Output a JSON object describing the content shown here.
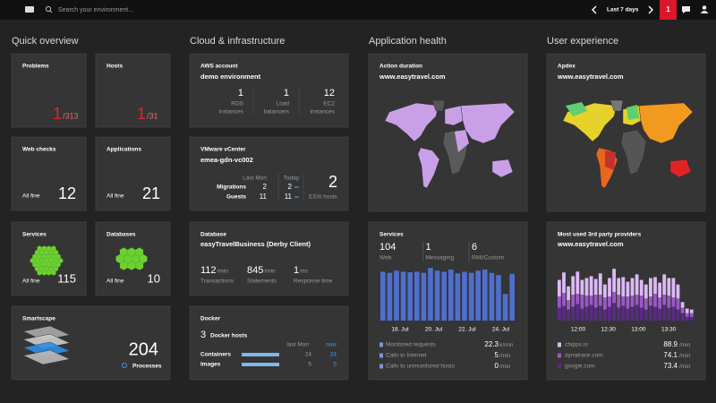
{
  "topbar": {
    "search": "Search your environment...",
    "timeframe": "Last 7 days",
    "alerts": "1"
  },
  "sections": [
    "Quick overview",
    "Cloud & infrastructure",
    "Application health",
    "User experience"
  ],
  "quick": {
    "problems": {
      "title": "Problems",
      "count": "1",
      "total": "/313"
    },
    "hosts": {
      "title": "Hosts",
      "count": "1",
      "total": "/31"
    },
    "webchecks": {
      "title": "Web checks",
      "status": "All fine",
      "count": 12
    },
    "applications": {
      "title": "Applications",
      "status": "All fine",
      "count": 21
    },
    "services": {
      "title": "Services",
      "status": "All fine",
      "count": 115
    },
    "databases": {
      "title": "Databases",
      "status": "All fine",
      "count": 10
    },
    "smartscape": {
      "title": "Smartscape",
      "count": 204,
      "label": "Processes"
    }
  },
  "cloud": {
    "aws": {
      "title": "AWS account",
      "name": "demo environment",
      "metrics": [
        {
          "value": 1,
          "label": [
            "RDS",
            "instances"
          ]
        },
        {
          "value": 1,
          "label": [
            "Load",
            "balancers"
          ]
        },
        {
          "value": 12,
          "label": [
            "EC2",
            "instances"
          ]
        }
      ]
    },
    "vmware": {
      "title": "VMware vCenter",
      "name": "emea-gdn-vc002",
      "columns": [
        "Last Mon",
        "Today"
      ],
      "rows": [
        {
          "label": "Migrations",
          "values": [
            2,
            2
          ]
        },
        {
          "label": "Guests",
          "values": [
            11,
            11
          ]
        }
      ],
      "hosts": 2,
      "hosts_label": "ESXi hosts"
    },
    "database": {
      "title": "Database",
      "name": "easyTravelBusiness (Derby Client)",
      "metrics": [
        {
          "value": 112,
          "unit": "/min",
          "label": "Transactions"
        },
        {
          "value": 845,
          "unit": "/min",
          "label": "Statements"
        },
        {
          "value": 1,
          "unit": "ms",
          "label": "Response time"
        }
      ]
    },
    "docker": {
      "title": "Docker",
      "hosts": 3,
      "hosts_label": "Docker hosts",
      "columns": [
        "last Mon",
        "now"
      ],
      "rows": [
        {
          "label": "Containers",
          "values": [
            24,
            24
          ]
        },
        {
          "label": "Images",
          "values": [
            5,
            5
          ]
        }
      ]
    }
  },
  "app": {
    "action": {
      "title": "Action duration",
      "url": "www.easytravel.com"
    },
    "services": {
      "title": "Services",
      "counts": [
        {
          "value": 104,
          "label": "Web"
        },
        {
          "value": 1,
          "label": "Messaging"
        },
        {
          "value": 6,
          "label": "RMI/Custom"
        }
      ],
      "chart": {
        "ylim": [
          0,
          100
        ],
        "color": "#4f6fd0",
        "values": [
          88,
          86,
          90,
          88,
          87,
          88,
          86,
          95,
          90,
          88,
          92,
          85,
          88,
          86,
          90,
          92,
          86,
          82,
          48,
          84
        ]
      },
      "xlabels": [
        "18. Jul",
        "20. Jul",
        "22. Jul",
        "24. Jul"
      ],
      "legend": [
        {
          "label": "Monitored requests",
          "value": 22.3,
          "unit": "k/min"
        },
        {
          "label": "Calls to Internet",
          "value": 5,
          "unit": "/min"
        },
        {
          "label": "Calls to unmonitored hosts",
          "value": 0,
          "unit": "/min"
        }
      ]
    }
  },
  "ux": {
    "apdex": {
      "title": "Apdex",
      "url": "www.easytravel.com"
    },
    "providers": {
      "title": "Most used 3rd party providers",
      "url": "www.easytravel.com",
      "ylim": [
        0,
        60
      ],
      "xlabels": [
        "12:00",
        "12:30",
        "13:00",
        "13:30"
      ],
      "series": [
        {
          "name": "cfapps.io",
          "value": 88.9,
          "unit": "/min",
          "color": "#dcb9f6",
          "values": [
            18,
            22,
            15,
            20,
            24,
            16,
            19,
            21,
            17,
            23,
            14,
            20,
            25,
            18,
            21,
            16,
            19,
            22,
            17,
            15,
            20,
            18,
            16,
            22,
            19,
            21,
            15,
            6,
            5,
            4
          ]
        },
        {
          "name": "dynatrace.com",
          "value": 74.1,
          "unit": "/min",
          "color": "#9a58c9",
          "values": [
            12,
            14,
            10,
            13,
            11,
            15,
            12,
            10,
            14,
            12,
            13,
            11,
            12,
            14,
            10,
            13,
            12,
            11,
            13,
            12,
            10,
            14,
            12,
            11,
            13,
            10,
            12,
            6,
            4,
            4
          ]
        },
        {
          "name": "google.com",
          "value": 73.4,
          "unit": "/min",
          "color": "#5a2a86",
          "values": [
            14,
            16,
            12,
            15,
            18,
            13,
            15,
            17,
            14,
            16,
            12,
            15,
            19,
            14,
            16,
            13,
            15,
            17,
            14,
            12,
            16,
            15,
            13,
            17,
            14,
            15,
            12,
            8,
            4,
            4
          ]
        }
      ]
    }
  }
}
